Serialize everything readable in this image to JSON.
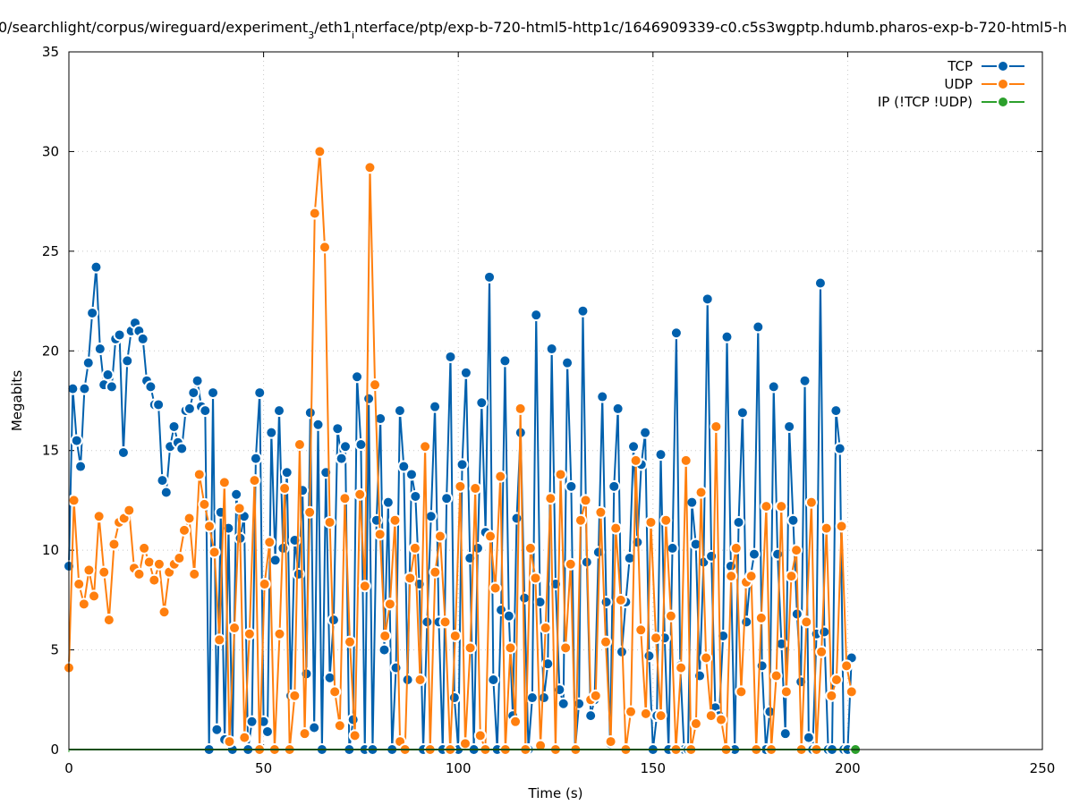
{
  "chart_data": {
    "type": "line",
    "title_parts": [
      {
        "text": "0/searchlight/corpus/wireguard/experiment",
        "sub": false
      },
      {
        "text": "3",
        "sub": true
      },
      {
        "text": "/eth1",
        "sub": false
      },
      {
        "text": "i",
        "sub": true
      },
      {
        "text": "nterface/ptp/exp-b-720-html5-http1c/1646909339-c0.c5s3wgptp.hdumb.pharos-exp-b-720-html5-h",
        "sub": false
      }
    ],
    "xlabel": "Time (s)",
    "ylabel": "Megabits",
    "xlim": [
      0,
      250
    ],
    "ylim": [
      0,
      35
    ],
    "xticks": [
      "0",
      "50",
      "100",
      "150",
      "200",
      "250"
    ],
    "yticks": [
      "0",
      "5",
      "10",
      "15",
      "20",
      "25",
      "30",
      "35"
    ],
    "grid": true,
    "legend_position": "top-right",
    "series": [
      {
        "name": "TCP",
        "color": "#0060ad",
        "x_range": [
          0,
          201
        ],
        "values": [
          9.2,
          18.1,
          15.5,
          14.2,
          18.1,
          19.4,
          21.9,
          24.2,
          20.1,
          18.3,
          18.8,
          18.2,
          20.6,
          20.8,
          14.9,
          19.5,
          21.0,
          21.4,
          21.0,
          20.6,
          18.5,
          18.2,
          17.3,
          17.3,
          13.5,
          12.9,
          15.2,
          16.2,
          15.4,
          15.1,
          17.0,
          17.1,
          17.9,
          18.5,
          17.2,
          17.0,
          0,
          17.9,
          1.0,
          11.9,
          0.5,
          11.1,
          0,
          12.8,
          10.6,
          11.7,
          0,
          1.4,
          14.6,
          17.9,
          1.4,
          0.9,
          15.9,
          9.5,
          17.0,
          10.1,
          13.9,
          2.7,
          10.5,
          8.8,
          13.0,
          3.8,
          16.9,
          1.1,
          16.3,
          0,
          13.9,
          3.6,
          6.5,
          16.1,
          14.6,
          15.2,
          0,
          1.5,
          18.7,
          15.3,
          0,
          17.6,
          0,
          11.5,
          16.6,
          5.0,
          12.4,
          0,
          4.1,
          17.0,
          14.2,
          3.5,
          13.8,
          12.7,
          8.3,
          0,
          6.4,
          11.7,
          17.2,
          6.4,
          0,
          12.6,
          19.7,
          2.6,
          0,
          14.3,
          18.9,
          9.6,
          0,
          10.1,
          17.4,
          10.9,
          23.7,
          3.5,
          0,
          7.0,
          19.5,
          6.7,
          1.7,
          11.6,
          15.9,
          7.6,
          0,
          2.6,
          21.8,
          7.4,
          2.6,
          4.3,
          20.1,
          8.3,
          3.0,
          2.3,
          19.4,
          13.2,
          0,
          2.3,
          22.0,
          9.4,
          1.7,
          2.5,
          9.9,
          17.7,
          7.4,
          0.3,
          13.2,
          17.1,
          4.9,
          7.4,
          9.6,
          15.2,
          10.4,
          14.3,
          15.9,
          4.7,
          0,
          1.7,
          14.8,
          5.6,
          0,
          10.1,
          20.9,
          4.2,
          0,
          0,
          12.4,
          10.3,
          3.7,
          9.4,
          22.6,
          9.7,
          2.1,
          1.7,
          5.7,
          20.7,
          9.2,
          0,
          11.4,
          16.9,
          6.4,
          8.6,
          9.8,
          21.2,
          4.2,
          0,
          1.9,
          18.2,
          9.8,
          5.3,
          0.8,
          16.2,
          11.5,
          6.8,
          3.4,
          18.5,
          0.6,
          0,
          5.8,
          23.4,
          5.9,
          0,
          0,
          17.0,
          15.1,
          0,
          0,
          4.6
        ]
      },
      {
        "name": "UDP",
        "color": "#ff7f0e",
        "x_range": [
          0,
          201
        ],
        "values": [
          4.1,
          12.5,
          8.3,
          7.3,
          9.0,
          7.7,
          11.7,
          8.9,
          6.5,
          10.3,
          11.4,
          11.6,
          12.0,
          9.1,
          8.8,
          10.1,
          9.4,
          8.5,
          9.3,
          6.9,
          8.9,
          9.3,
          9.6,
          11.0,
          11.6,
          8.8,
          13.8,
          12.3,
          11.2,
          9.9,
          5.5,
          13.4,
          0.4,
          6.1,
          12.1,
          0.6,
          5.8,
          13.5,
          0,
          8.3,
          10.4,
          0,
          5.8,
          13.1,
          0,
          2.7,
          15.3,
          0.8,
          11.9,
          26.9,
          30.0,
          25.2,
          11.4,
          2.9,
          1.2,
          12.6,
          5.4,
          0.7,
          12.8,
          8.2,
          29.2,
          18.3,
          10.8,
          5.7,
          7.3,
          11.5,
          0.4,
          0,
          8.6,
          10.1,
          3.5,
          15.2,
          0,
          8.9,
          10.7,
          6.4,
          0,
          5.7,
          13.2,
          0.3,
          5.1,
          13.1,
          0.7,
          0,
          10.7,
          8.1,
          13.7,
          0,
          5.1,
          1.4,
          17.1,
          0,
          10.1,
          8.6,
          0.2,
          6.1,
          12.6,
          0,
          13.8,
          5.1,
          9.3,
          0,
          11.5,
          12.5,
          2.5,
          2.7,
          11.9,
          5.4,
          0.4,
          11.1,
          7.5,
          0,
          1.9,
          14.5,
          6.0,
          1.8,
          11.4,
          5.6,
          1.7,
          11.5,
          6.7,
          0,
          4.1,
          14.5,
          0,
          1.3,
          12.9,
          4.6,
          1.7,
          16.2,
          1.5,
          0,
          8.7,
          10.1,
          2.9,
          8.4,
          8.7,
          0,
          6.6,
          12.2,
          0,
          3.7,
          12.2,
          2.9,
          8.7,
          10.0,
          0,
          6.4,
          12.4,
          0,
          4.9,
          11.1,
          2.7,
          3.5,
          11.2,
          4.2,
          2.9
        ]
      },
      {
        "name": "IP (!TCP  !UDP)",
        "color": "#2ca02c",
        "x_range": [
          0,
          202
        ],
        "values": [
          0,
          0
        ]
      }
    ]
  }
}
